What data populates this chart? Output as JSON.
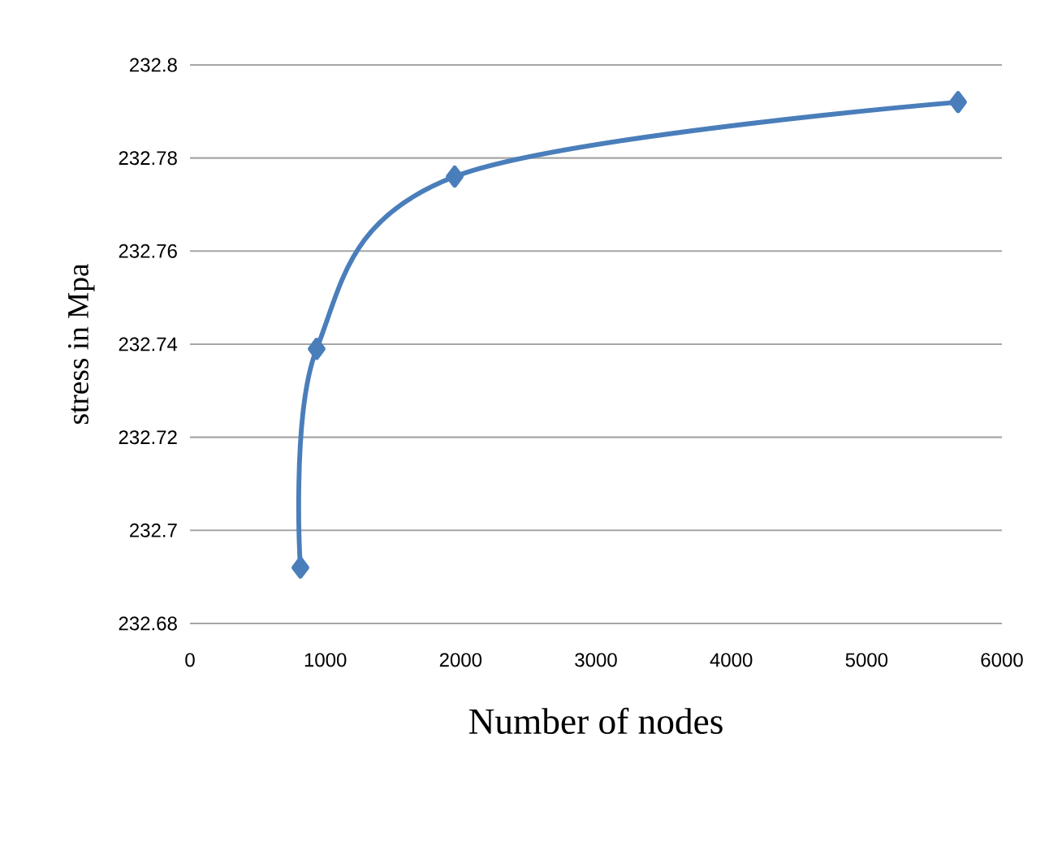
{
  "chart_data": {
    "type": "line",
    "xlabel": "Number of nodes",
    "ylabel": "stress  in Mpa",
    "x": [
      816,
      936,
      1956,
      5676
    ],
    "series": [
      {
        "color": "#4a7ebb",
        "values": [
          232.692,
          232.739,
          232.776,
          232.792
        ]
      }
    ],
    "xlim": [
      0,
      6000
    ],
    "xticks": [
      0,
      1000,
      2000,
      3000,
      4000,
      5000,
      6000
    ],
    "ylim": [
      232.68,
      232.8
    ],
    "yticks": [
      232.68,
      232.7,
      232.72,
      232.74,
      232.76,
      232.78,
      232.8
    ],
    "grid": "y",
    "marker": "diamond",
    "line_style": "solid"
  }
}
